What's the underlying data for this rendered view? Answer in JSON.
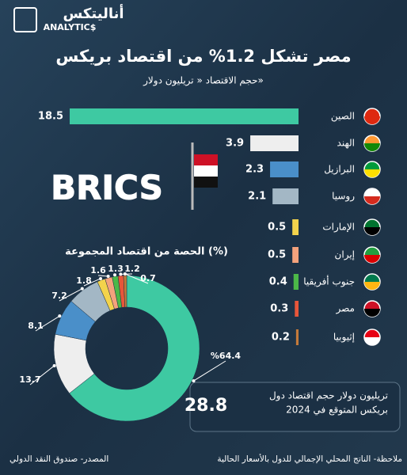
{
  "header": {
    "logo_ar": "أناليتكس",
    "logo_en": "ANALYTIC$",
    "title": "مصر تشكل 1.2% من اقتصاد بريكس",
    "subtitle": "حجم الاقتصاد « تريليون دولار»"
  },
  "brics_logo": "BRICS",
  "chart_data": [
    {
      "type": "bar",
      "orientation": "horizontal",
      "categories": [
        "الصين",
        "الهند",
        "البرازيل",
        "روسيا",
        "الإمارات",
        "إيران",
        "جنوب أفريقيا",
        "مصر",
        "إثيوبيا"
      ],
      "values": [
        18.5,
        3.9,
        2.3,
        2.1,
        0.5,
        0.5,
        0.4,
        0.3,
        0.2
      ],
      "colors": [
        "#3ec9a2",
        "#eeeeee",
        "#4a8fc9",
        "#a3b7c5",
        "#f3d34c",
        "#f4a27c",
        "#4cb848",
        "#e8563a",
        "#c47a3a"
      ]
    },
    {
      "type": "donut",
      "title": "الحصة من اقتصاد المجموعة (%)",
      "categories": [
        "الصين",
        "الهند",
        "البرازيل",
        "روسيا",
        "الإمارات",
        "إيران",
        "جنوب أفريقيا",
        "مصر",
        "إثيوبيا"
      ],
      "values": [
        64.4,
        13.7,
        8.1,
        7.2,
        1.8,
        1.6,
        1.3,
        1.2,
        0.7
      ],
      "value_labels": [
        "%64.4",
        "13.7",
        "8.1",
        "7.2",
        "1.8",
        "1.6",
        "1.3",
        "1.2",
        "0.7"
      ],
      "colors": [
        "#3ec9a2",
        "#eeeeee",
        "#4a8fc9",
        "#a3b7c5",
        "#f3d34c",
        "#f4a27c",
        "#4cb848",
        "#e8563a",
        "#c47a3a"
      ]
    }
  ],
  "total": {
    "value": "28.8",
    "text_line1": "تريليون دولار حجم اقتصاد دول",
    "text_line2": "بريكس المتوقع في 2024"
  },
  "footer": {
    "note": "ملاحظة- الناتج المحلي الإجمالي للدول بالأسعار الحالية",
    "source": "المصدر- صندوق النقد الدولي"
  }
}
